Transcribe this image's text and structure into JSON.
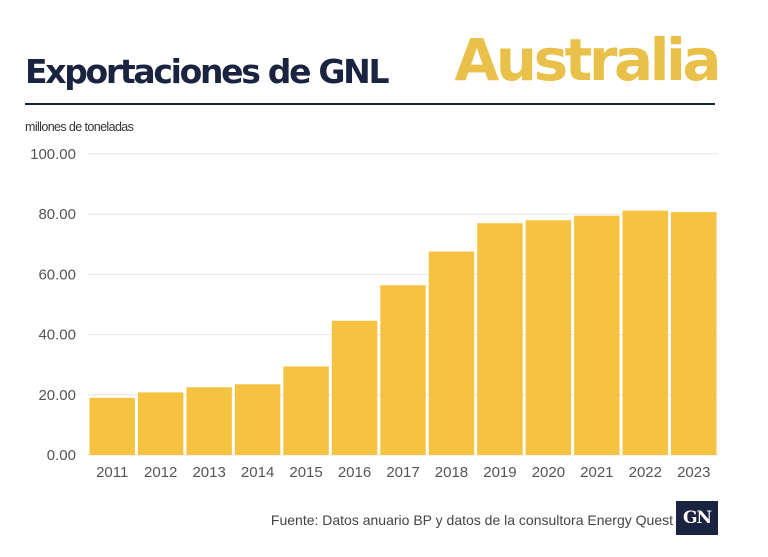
{
  "header": {
    "title": "Exportaciones de GNL",
    "country": "Australia",
    "unit_label": "millones de toneladas"
  },
  "footer": {
    "source": "Fuente: Datos anuario BP y datos de la consultora Energy Quest",
    "logo_text": "GN"
  },
  "colors": {
    "bar": "#F5C242",
    "title": "#1A2340",
    "accent": "#E9C14A",
    "grid": "#E6E6E6"
  },
  "chart_data": {
    "type": "bar",
    "title": "Exportaciones de GNL",
    "ylabel": "millones de toneladas",
    "xlabel": "",
    "categories": [
      "2011",
      "2012",
      "2013",
      "2014",
      "2015",
      "2016",
      "2017",
      "2018",
      "2019",
      "2020",
      "2021",
      "2022",
      "2023"
    ],
    "values": [
      19.0,
      20.8,
      22.5,
      23.5,
      29.4,
      44.6,
      56.4,
      67.6,
      77.0,
      78.0,
      79.5,
      81.2,
      80.7
    ],
    "ylim": [
      0,
      100
    ],
    "yticks": [
      "0.00",
      "20.00",
      "40.00",
      "60.00",
      "80.00",
      "100.00"
    ],
    "grid": true,
    "legend": "none"
  }
}
